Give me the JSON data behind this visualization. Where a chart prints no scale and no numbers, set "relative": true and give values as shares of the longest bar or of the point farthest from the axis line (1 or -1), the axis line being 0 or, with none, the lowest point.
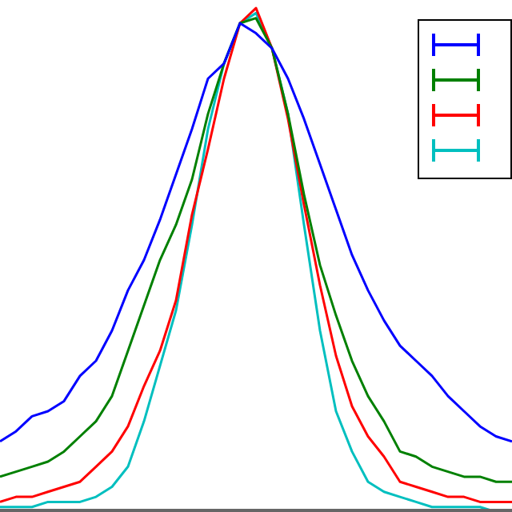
{
  "chart_data": {
    "type": "line",
    "relative": true,
    "legend": false,
    "grid": false,
    "categories": [
      null,
      null,
      null,
      null,
      null,
      null,
      null,
      null,
      null,
      null,
      null,
      null,
      null,
      null,
      null,
      null,
      null,
      null,
      null,
      null,
      null,
      null,
      null,
      null,
      null,
      null,
      null,
      null,
      null,
      null,
      null,
      null,
      null
    ],
    "series": [
      {
        "color": "#0000ff",
        "values": [
          0.14,
          0.16,
          0.19,
          0.2,
          0.22,
          0.27,
          0.3,
          0.36,
          0.44,
          0.5,
          0.58,
          0.67,
          0.76,
          0.86,
          0.89,
          0.97,
          0.95,
          0.92,
          0.86,
          0.78,
          0.69,
          0.6,
          0.51,
          0.44,
          0.38,
          0.33,
          0.3,
          0.27,
          0.23,
          0.2,
          0.17,
          0.15,
          0.14
        ]
      },
      {
        "color": "#008000",
        "values": [
          0.07,
          0.08,
          0.09,
          0.1,
          0.12,
          0.15,
          0.18,
          0.23,
          0.32,
          0.41,
          0.5,
          0.57,
          0.66,
          0.79,
          0.89,
          0.97,
          0.98,
          0.92,
          0.79,
          0.63,
          0.49,
          0.39,
          0.3,
          0.23,
          0.18,
          0.12,
          0.11,
          0.09,
          0.08,
          0.07,
          0.07,
          0.06,
          0.06
        ]
      },
      {
        "color": "#ff0000",
        "values": [
          0.02,
          0.03,
          0.03,
          0.04,
          0.05,
          0.06,
          0.09,
          0.12,
          0.17,
          0.25,
          0.32,
          0.42,
          0.59,
          0.72,
          0.86,
          0.97,
          1,
          0.92,
          0.78,
          0.61,
          0.45,
          0.31,
          0.21,
          0.15,
          0.11,
          0.06,
          0.05,
          0.04,
          0.03,
          0.03,
          0.02,
          0.02,
          0.02
        ]
      },
      {
        "color": "#00bfbf",
        "values": [
          0.01,
          0.01,
          0.01,
          0.02,
          0.02,
          0.02,
          0.03,
          0.05,
          0.09,
          0.18,
          0.29,
          0.4,
          0.57,
          0.76,
          0.89,
          0.97,
          0.99,
          0.92,
          0.79,
          0.57,
          0.36,
          0.2,
          0.12,
          0.06,
          0.04,
          0.03,
          0.02,
          0.01,
          0.01,
          0.01,
          0.01,
          0,
          0
        ]
      }
    ]
  }
}
